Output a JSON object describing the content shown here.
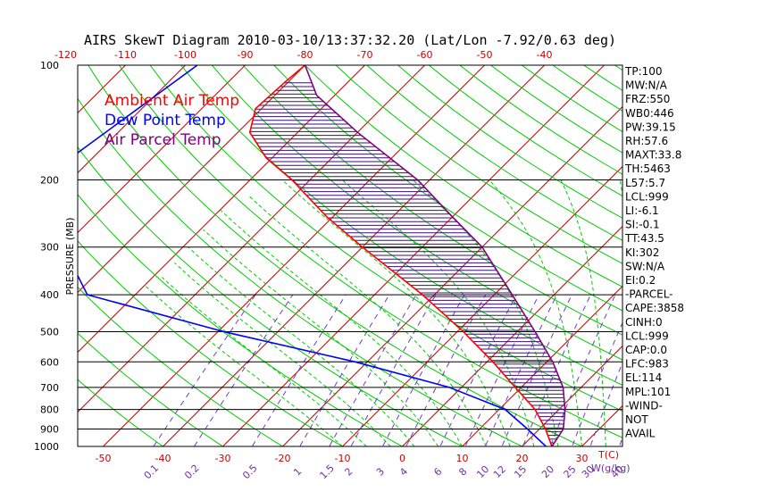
{
  "chart_data": {
    "type": "line",
    "title": "AIRS SkewT Diagram 2010-03-10/13:37:32.20 (Lat/Lon -7.92/0.63 deg)",
    "ylabel": "PRESSURE (MB)",
    "xlabel": "T(C)",
    "mixing_label": "W(g/kg)",
    "pressure_ticks": [
      100,
      200,
      300,
      400,
      500,
      600,
      700,
      800,
      900,
      1000
    ],
    "pressure_tick_labels": [
      "100",
      "200",
      "300",
      "400",
      "500",
      "600",
      "700",
      "800",
      "900",
      "1000"
    ],
    "temp_bottom_ticks": [
      -50,
      -40,
      -30,
      -20,
      -10,
      0,
      10,
      20,
      30
    ],
    "temp_bottom_labels": [
      "-50",
      "-40",
      "-30",
      "-20",
      "-10",
      "0",
      "10",
      "20",
      "30"
    ],
    "temp_top_ticks": [
      -120,
      -110,
      -100,
      -90,
      -80,
      -70,
      -60,
      -50,
      -40
    ],
    "temp_top_labels": [
      "-120",
      "-110",
      "-100",
      "-90",
      "-80",
      "-70",
      "-60",
      "-50",
      "-40"
    ],
    "mixing_ratio_values": [
      0.1,
      0.2,
      0.5,
      1,
      1.5,
      2,
      3,
      4,
      6,
      8,
      10,
      12,
      15,
      20,
      25,
      30,
      40
    ],
    "mixing_ratio_labels": [
      "0.1",
      "0.2",
      "0.5",
      "1",
      "1.5",
      "2",
      "3",
      "4",
      "6",
      "8",
      "10",
      "12",
      "15",
      "20",
      "25",
      "30",
      "40"
    ],
    "legend": [
      {
        "name": "Ambient Air Temp",
        "color": "#ff0000"
      },
      {
        "name": "Dew Point Temp",
        "color": "#0000ff"
      },
      {
        "name": "Air Parcel Temp",
        "color": "#800080"
      }
    ],
    "series": [
      {
        "name": "Ambient Air Temp",
        "color": "#ff0000",
        "points": [
          {
            "p": 100,
            "t": -80
          },
          {
            "p": 110,
            "t": -80.5
          },
          {
            "p": 130,
            "t": -81
          },
          {
            "p": 150,
            "t": -78
          },
          {
            "p": 175,
            "t": -71
          },
          {
            "p": 200,
            "t": -63
          },
          {
            "p": 250,
            "t": -51
          },
          {
            "p": 300,
            "t": -40
          },
          {
            "p": 400,
            "t": -22
          },
          {
            "p": 500,
            "t": -9
          },
          {
            "p": 600,
            "t": 1
          },
          {
            "p": 700,
            "t": 9
          },
          {
            "p": 800,
            "t": 16
          },
          {
            "p": 900,
            "t": 21
          },
          {
            "p": 1000,
            "t": 25
          }
        ]
      },
      {
        "name": "Dew Point Temp",
        "color": "#0000ff",
        "points": [
          {
            "p": 100,
            "t": -98
          },
          {
            "p": 200,
            "t": -105
          },
          {
            "p": 250,
            "t": -102
          },
          {
            "p": 300,
            "t": -90
          },
          {
            "p": 400,
            "t": -78
          },
          {
            "p": 500,
            "t": -49
          },
          {
            "p": 600,
            "t": -22
          },
          {
            "p": 700,
            "t": -2
          },
          {
            "p": 800,
            "t": 11
          },
          {
            "p": 900,
            "t": 18
          },
          {
            "p": 1000,
            "t": 24
          }
        ]
      },
      {
        "name": "Air Parcel Temp",
        "color": "#800080",
        "points": [
          {
            "p": 100,
            "t": -80
          },
          {
            "p": 120,
            "t": -73
          },
          {
            "p": 150,
            "t": -60
          },
          {
            "p": 200,
            "t": -42
          },
          {
            "p": 250,
            "t": -30
          },
          {
            "p": 300,
            "t": -20
          },
          {
            "p": 400,
            "t": -7
          },
          {
            "p": 500,
            "t": 3
          },
          {
            "p": 600,
            "t": 11
          },
          {
            "p": 700,
            "t": 17
          },
          {
            "p": 800,
            "t": 21
          },
          {
            "p": 900,
            "t": 24
          },
          {
            "p": 1000,
            "t": 25
          }
        ]
      }
    ],
    "indices": [
      "TP:100",
      "MW:N/A",
      "FRZ:550",
      "WB0:446",
      "PW:39.15",
      "RH:57.6",
      "MAXT:33.8",
      "TH:5463",
      "L57:5.7",
      "LCL:999",
      "LI:-6.1",
      "SI:-0.1",
      "TT:43.5",
      "KI:302",
      "SW:N/A",
      "EI:0.2",
      "-PARCEL-",
      "CAPE:3858",
      "CINH:0",
      "LCL:999",
      "CAP:0.0",
      "LFC:983",
      "EL:114",
      "MPL:101",
      "-WIND-",
      "NOT",
      "AVAIL"
    ],
    "colors": {
      "isobar": "#000000",
      "isotherm": "#cc0000",
      "dry_adiabat": "#00cc00",
      "moist_adiabat": "#00cc00",
      "mixing_ratio": "#6a3fc8",
      "hatch": "#3a1070"
    }
  }
}
